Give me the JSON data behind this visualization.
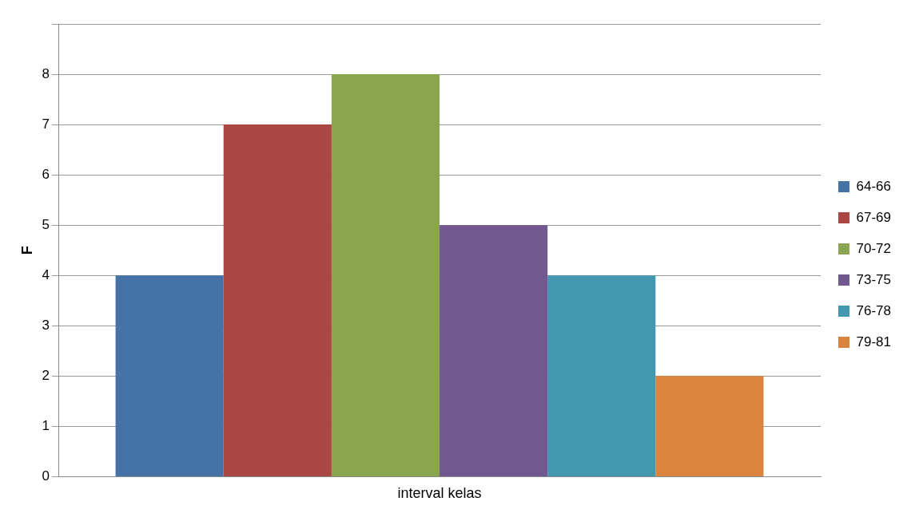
{
  "chart_data": {
    "type": "bar",
    "ylabel": "F",
    "categories": [
      "interval kelas"
    ],
    "series": [
      {
        "name": "64-66",
        "color": "#4572a7",
        "values": [
          4
        ]
      },
      {
        "name": "67-69",
        "color": "#aa4643",
        "values": [
          7
        ]
      },
      {
        "name": "70-72",
        "color": "#89a54e",
        "values": [
          8
        ]
      },
      {
        "name": "73-75",
        "color": "#71588f",
        "values": [
          5
        ]
      },
      {
        "name": "76-78",
        "color": "#4198af",
        "values": [
          4
        ]
      },
      {
        "name": "79-81",
        "color": "#db843d",
        "values": [
          2
        ]
      }
    ],
    "ylim": [
      0,
      9
    ],
    "yticks": [
      0,
      1,
      2,
      3,
      4,
      5,
      6,
      7,
      8,
      {
        "value": 9,
        "label": null
      }
    ],
    "grid": "y",
    "legend": "right"
  }
}
